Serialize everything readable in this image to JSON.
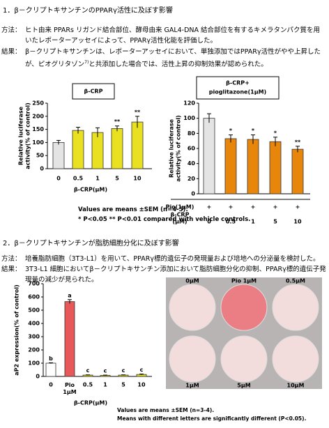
{
  "section1": {
    "heading": "1．β－クリプトキサンチンのPPARγ活性に及ぼす影響",
    "method_label": "方法：",
    "method": "ヒト由来 PPARs リガンド結合部位、酵母由来 GAL4-DNA 結合部位を有するキメラタンパク質を用いたレポーターアッセイによって、PPARγ活性化能を評価した。",
    "result_label": "結果：",
    "result_a": "β－クリプトキサンチンは、レポーターアッセイにおいて、単独添加ではPPARγ活性がやや上昇したが、ピオグリタゾン",
    "result_ref": "7)",
    "result_b": "と共添加した場合では、活性上昇の抑制効果が認められた。"
  },
  "chart_data": [
    {
      "type": "bar",
      "title": [
        "β-CRP"
      ],
      "y_label": [
        "Relative luciferase",
        "activity(% of control)"
      ],
      "x_label": [
        "β-CRP(μM)"
      ],
      "categories": [
        "0",
        "0.5",
        "1",
        "5",
        "10"
      ],
      "values": [
        100,
        146,
        138,
        153,
        178
      ],
      "errors": [
        8,
        12,
        18,
        10,
        22
      ],
      "annotations": [
        null,
        null,
        null,
        "**",
        "**"
      ],
      "colors": [
        "#e4e4e4",
        "#e8e020",
        "#e8e020",
        "#e8e020",
        "#e8e020"
      ],
      "ylim": [
        0,
        250
      ],
      "yticks": [
        0,
        50,
        100,
        150,
        200,
        250
      ]
    },
    {
      "type": "bar",
      "title": [
        "β-CRP+",
        "pioglitazone(1μM)"
      ],
      "y_label": [
        "Relative luciferase",
        "activity(% of control)"
      ],
      "x_label": [
        "β-CRP",
        "(μM)"
      ],
      "pio_row": {
        "label": "Pio(1μM)",
        "marks": [
          "+",
          "+",
          "+",
          "+",
          "+"
        ]
      },
      "categories": [
        "0",
        "0.5",
        "1",
        "5",
        "10"
      ],
      "values": [
        100,
        73,
        72,
        69,
        59
      ],
      "errors": [
        6,
        5,
        6,
        6,
        4
      ],
      "annotations": [
        null,
        "*",
        "*",
        "*",
        "**"
      ],
      "colors": [
        "#e4e4e4",
        "#e8860c",
        "#e8860c",
        "#e8860c",
        "#e8860c"
      ],
      "ylim": [
        0,
        120
      ],
      "yticks": [
        0,
        20,
        40,
        60,
        80,
        100,
        120
      ]
    },
    {
      "type": "bar",
      "y_label": [
        "aP2 expression(% of control)"
      ],
      "x_label": [
        "β-CRP(μM)"
      ],
      "categories": [
        "0",
        "Pio 1μM",
        "0.5",
        "1",
        "5",
        "10"
      ],
      "values": [
        100,
        565,
        10,
        8,
        10,
        15
      ],
      "errors": [
        3,
        15,
        2,
        2,
        2,
        3
      ],
      "annotations": [
        "b",
        "a",
        "c",
        "c",
        "c",
        "c"
      ],
      "colors": [
        "#ffffff",
        "#e85858",
        "#e8e020",
        "#e8e020",
        "#e8e020",
        "#e8e020"
      ],
      "ylim": [
        0,
        700
      ],
      "yticks": [
        0,
        100,
        200,
        300,
        400,
        500,
        600,
        700
      ]
    }
  ],
  "notes1": [
    "Values are means ±SEM (n=4-5).",
    "*  P<0.05 ** P<0.01 compared with vehicle controls."
  ],
  "section2": {
    "heading": "2．β－クリプトキサンチンが脂肪細胞分化に及ぼす影響",
    "method_label": "方法：",
    "method": "培養脂肪細胞（3T3-L1）を用いて、PPARγ標的遺伝子の発現量および培地への分泌量を検討した。",
    "result_label": "結果：",
    "result": "3T3-L1 細胞においてβ－クリプトキサンチン添加において脂肪細胞分化の抑制、PPARγ標的遺伝子発現量の減少が見られた。"
  },
  "wells": {
    "labels": [
      "0μM",
      "Pio 1μM",
      "0.5μM",
      "1μM",
      "5μM",
      "10μM"
    ]
  },
  "notes3": [
    "Values are means ±SEM (n=3-4).",
    "Means with different letters are significantly different (P<0.05)."
  ]
}
